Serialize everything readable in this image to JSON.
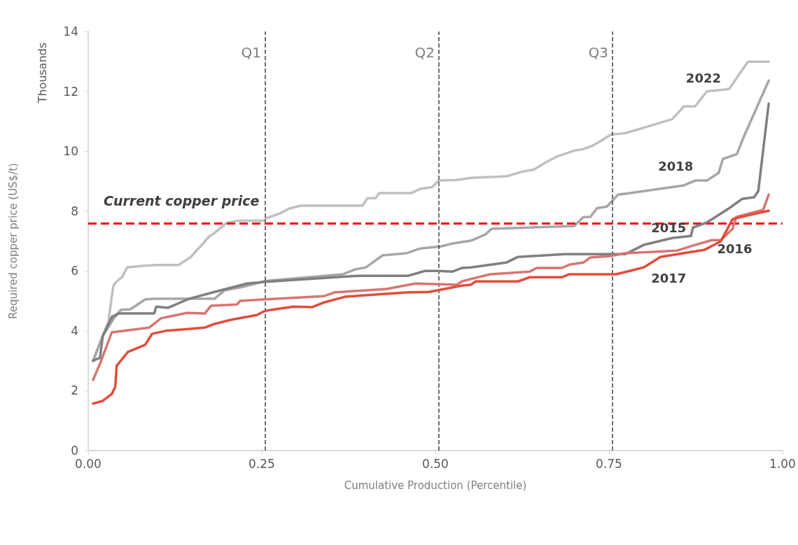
{
  "chart_data": {
    "type": "line",
    "xlabel": "Cumulative Production (Percentile)",
    "ylabel": "Required copper price (US$/t)",
    "annotations": [
      "Thousands"
    ],
    "xlim": [
      0,
      1
    ],
    "xticks": [
      {
        "value": 0,
        "label": "0.00"
      },
      {
        "value": 0.25,
        "label": "0.25"
      },
      {
        "value": 0.5,
        "label": "0.50"
      },
      {
        "value": 0.75,
        "label": "0.75"
      },
      {
        "value": 1,
        "label": "1.00"
      }
    ],
    "ylim": [
      0,
      14
    ],
    "yticks": [
      0,
      2,
      4,
      6,
      8,
      10,
      12,
      14
    ],
    "grid": false,
    "legend": false,
    "marker": "none",
    "line_style": "solid",
    "ref_lines": [
      {
        "axis": "x",
        "value": 0.255,
        "label": "Q1",
        "color": "#404040",
        "line_style": "dashed"
      },
      {
        "axis": "x",
        "value": 0.505,
        "label": "Q2",
        "color": "#404040",
        "line_style": "dashed"
      },
      {
        "axis": "x",
        "value": 0.755,
        "label": "Q3",
        "color": "#404040",
        "line_style": "dashed"
      },
      {
        "axis": "y",
        "value": 7.6,
        "label": "Current copper price",
        "color": "#ff0000",
        "line_style": "dashed"
      }
    ],
    "series": [
      {
        "name": "2022",
        "color": "#c0c0c0",
        "x": [
          0.007,
          0.021,
          0.029,
          0.036,
          0.037,
          0.041,
          0.049,
          0.056,
          0.078,
          0.098,
          0.13,
          0.148,
          0.175,
          0.182,
          0.199,
          0.216,
          0.253,
          0.256,
          0.276,
          0.289,
          0.306,
          0.395,
          0.402,
          0.414,
          0.419,
          0.465,
          0.478,
          0.495,
          0.505,
          0.531,
          0.551,
          0.602,
          0.626,
          0.642,
          0.659,
          0.676,
          0.7,
          0.713,
          0.727,
          0.74,
          0.753,
          0.773,
          0.841,
          0.858,
          0.874,
          0.891,
          0.923,
          0.95,
          0.98
        ],
        "values": [
          3.0,
          3.83,
          4.3,
          5.47,
          5.54,
          5.65,
          5.8,
          6.12,
          6.17,
          6.2,
          6.2,
          6.47,
          7.17,
          7.27,
          7.6,
          7.68,
          7.68,
          7.76,
          7.92,
          8.08,
          8.18,
          8.18,
          8.43,
          8.43,
          8.6,
          8.6,
          8.74,
          8.8,
          9.02,
          9.04,
          9.11,
          9.16,
          9.32,
          9.39,
          9.63,
          9.83,
          10.02,
          10.07,
          10.19,
          10.37,
          10.56,
          10.6,
          11.07,
          11.5,
          11.5,
          12.0,
          12.08,
          12.99,
          12.99
        ]
      },
      {
        "name": "2018",
        "color": "#a6a6a6",
        "x": [
          0.007,
          0.021,
          0.037,
          0.047,
          0.061,
          0.082,
          0.095,
          0.182,
          0.196,
          0.223,
          0.256,
          0.367,
          0.384,
          0.4,
          0.424,
          0.458,
          0.478,
          0.508,
          0.525,
          0.551,
          0.572,
          0.581,
          0.7,
          0.713,
          0.723,
          0.733,
          0.747,
          0.763,
          0.78,
          0.858,
          0.874,
          0.891,
          0.908,
          0.914,
          0.934,
          0.945,
          0.98
        ],
        "values": [
          3.0,
          3.83,
          4.42,
          4.7,
          4.72,
          5.05,
          5.07,
          5.07,
          5.35,
          5.47,
          5.67,
          5.89,
          6.05,
          6.12,
          6.52,
          6.59,
          6.75,
          6.82,
          6.92,
          7.01,
          7.22,
          7.41,
          7.5,
          7.8,
          7.8,
          8.1,
          8.15,
          8.55,
          8.6,
          8.86,
          9.02,
          9.02,
          9.28,
          9.74,
          9.9,
          10.53,
          12.36
        ]
      },
      {
        "name": "2015",
        "color": "#7f7f7f",
        "x": [
          0.007,
          0.017,
          0.021,
          0.034,
          0.044,
          0.095,
          0.098,
          0.115,
          0.145,
          0.182,
          0.229,
          0.256,
          0.39,
          0.461,
          0.485,
          0.505,
          0.525,
          0.538,
          0.551,
          0.602,
          0.619,
          0.686,
          0.773,
          0.8,
          0.841,
          0.868,
          0.871,
          0.891,
          0.924,
          0.942,
          0.959,
          0.965,
          0.98
        ],
        "values": [
          3.0,
          3.1,
          3.83,
          4.46,
          4.58,
          4.58,
          4.81,
          4.77,
          5.07,
          5.3,
          5.58,
          5.64,
          5.84,
          5.84,
          6.0,
          6.0,
          5.98,
          6.1,
          6.12,
          6.28,
          6.47,
          6.56,
          6.56,
          6.87,
          7.1,
          7.17,
          7.45,
          7.62,
          8.11,
          8.41,
          8.46,
          8.67,
          11.59
        ]
      },
      {
        "name": "2016",
        "color": "#d47672",
        "x": [
          0.007,
          0.017,
          0.034,
          0.088,
          0.105,
          0.128,
          0.142,
          0.168,
          0.177,
          0.214,
          0.219,
          0.253,
          0.34,
          0.354,
          0.43,
          0.471,
          0.531,
          0.538,
          0.558,
          0.579,
          0.636,
          0.646,
          0.682,
          0.693,
          0.713,
          0.723,
          0.753,
          0.773,
          0.848,
          0.874,
          0.898,
          0.911,
          0.928,
          0.933,
          0.972,
          0.98
        ],
        "values": [
          2.36,
          2.9,
          3.95,
          4.11,
          4.42,
          4.53,
          4.6,
          4.58,
          4.84,
          4.88,
          5.0,
          5.05,
          5.16,
          5.28,
          5.4,
          5.58,
          5.54,
          5.65,
          5.77,
          5.89,
          5.98,
          6.1,
          6.1,
          6.21,
          6.28,
          6.45,
          6.5,
          6.59,
          6.68,
          6.87,
          7.03,
          7.03,
          7.41,
          7.8,
          8.04,
          8.55
        ]
      },
      {
        "name": "2017",
        "color": "#e24c3c",
        "x": [
          0.007,
          0.021,
          0.034,
          0.039,
          0.041,
          0.057,
          0.082,
          0.092,
          0.112,
          0.168,
          0.182,
          0.206,
          0.243,
          0.253,
          0.263,
          0.296,
          0.322,
          0.34,
          0.37,
          0.458,
          0.491,
          0.538,
          0.551,
          0.558,
          0.619,
          0.636,
          0.682,
          0.693,
          0.76,
          0.78,
          0.8,
          0.824,
          0.888,
          0.911,
          0.928,
          0.949,
          0.98
        ],
        "values": [
          1.57,
          1.66,
          1.89,
          2.13,
          2.83,
          3.29,
          3.53,
          3.9,
          4.0,
          4.11,
          4.23,
          4.37,
          4.53,
          4.65,
          4.7,
          4.81,
          4.79,
          4.95,
          5.14,
          5.28,
          5.3,
          5.51,
          5.54,
          5.65,
          5.65,
          5.79,
          5.79,
          5.89,
          5.89,
          6.0,
          6.12,
          6.47,
          6.71,
          6.99,
          7.73,
          7.85,
          8.01
        ]
      }
    ]
  }
}
